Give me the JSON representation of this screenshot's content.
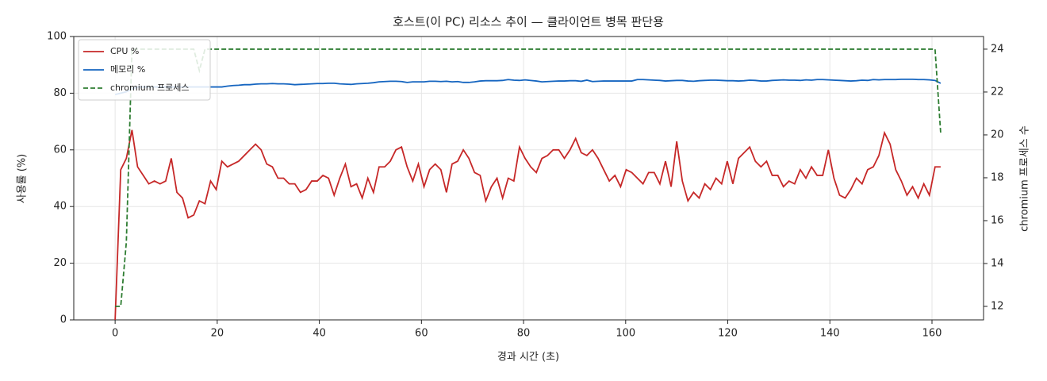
{
  "chart_data": {
    "type": "line",
    "title": "호스트(이 PC) 리소스 추이 — 클라이언트 병목 판단용",
    "x_label": "경과 시간 (초)",
    "y_label": "사용률 (%)",
    "y2_label": "chromium 프로세스 수",
    "xlim": [
      -8.1,
      170.1
    ],
    "xticks": [
      0,
      20,
      40,
      60,
      80,
      100,
      120,
      140,
      160
    ],
    "ylim": [
      0,
      100
    ],
    "yticks": [
      0,
      20,
      40,
      60,
      80,
      100
    ],
    "y2lim": [
      11.37,
      24.59
    ],
    "y2ticks": [
      12,
      14,
      16,
      18,
      20,
      22,
      24
    ],
    "grid": true,
    "legend": "upper-left",
    "x": [
      0,
      1.1,
      2.2,
      3.3,
      4.4,
      5.5,
      6.6,
      7.7,
      8.8,
      9.9,
      11,
      12.1,
      13.2,
      14.3,
      15.4,
      16.5,
      17.6,
      18.7,
      19.8,
      20.9,
      22,
      23.1,
      24.2,
      25.3,
      26.4,
      27.5,
      28.6,
      29.7,
      30.8,
      31.9,
      33,
      34.1,
      35.2,
      36.3,
      37.4,
      38.5,
      39.6,
      40.7,
      41.8,
      42.9,
      44,
      45.1,
      46.2,
      47.3,
      48.4,
      49.5,
      50.6,
      51.7,
      52.8,
      53.9,
      55,
      56.1,
      57.2,
      58.3,
      59.4,
      60.5,
      61.6,
      62.7,
      63.8,
      64.9,
      66,
      67.1,
      68.2,
      69.3,
      70.4,
      71.5,
      72.6,
      73.7,
      74.8,
      75.9,
      77,
      78.1,
      79.2,
      80.3,
      81.4,
      82.5,
      83.6,
      84.7,
      85.8,
      86.9,
      88,
      89.1,
      90.2,
      91.3,
      92.4,
      93.5,
      94.6,
      95.7,
      96.8,
      97.9,
      99,
      100.1,
      101.2,
      102.3,
      103.4,
      104.5,
      105.6,
      106.7,
      107.8,
      108.9,
      110,
      111.1,
      112.2,
      113.3,
      114.4,
      115.5,
      116.6,
      117.7,
      118.8,
      119.9,
      121,
      122.1,
      123.2,
      124.3,
      125.4,
      126.5,
      127.6,
      128.7,
      129.8,
      130.9,
      132,
      133.1,
      134.2,
      135.3,
      136.4,
      137.5,
      138.6,
      139.7,
      140.8,
      141.9,
      143,
      144.1,
      145.2,
      146.3,
      147.4,
      148.5,
      149.6,
      150.7,
      151.8,
      152.9,
      154,
      155.1,
      156.2,
      157.3,
      158.4,
      159.5,
      160.6,
      161.7
    ],
    "series": [
      {
        "name": "CPU %",
        "color": "#c62828",
        "style": "solid",
        "axis": "y",
        "values": [
          0,
          53,
          57,
          67,
          54,
          51,
          48,
          49,
          48,
          49,
          57,
          45,
          43,
          36,
          37,
          42,
          41,
          49,
          46,
          56,
          54,
          55,
          56,
          58,
          60,
          62,
          60,
          55,
          54,
          50,
          50,
          48,
          48,
          45,
          46,
          49,
          49,
          51,
          50,
          44,
          50,
          55,
          47,
          48,
          43,
          50,
          45,
          54,
          54,
          56,
          60,
          61,
          54,
          49,
          55,
          47,
          53,
          55,
          53,
          45,
          55,
          56,
          60,
          57,
          52,
          51,
          42,
          47,
          50,
          43,
          50,
          49,
          61,
          57,
          54,
          52,
          57,
          58,
          60,
          60,
          57,
          60,
          64,
          59,
          58,
          60,
          57,
          53,
          49,
          51,
          47,
          53,
          52,
          50,
          48,
          52,
          52,
          48,
          56,
          47,
          63,
          49,
          42,
          45,
          43,
          48,
          46,
          50,
          48,
          56,
          48,
          57,
          59,
          61,
          56,
          54,
          56,
          51,
          51,
          47,
          49,
          48,
          53,
          50,
          54,
          51,
          51,
          60,
          50,
          44,
          43,
          46,
          50,
          48,
          53,
          54,
          58,
          66,
          62,
          53,
          49,
          44,
          47,
          43,
          48,
          44,
          54,
          54
        ]
      },
      {
        "name": "메모리 %",
        "color": "#1565c0",
        "style": "solid",
        "axis": "y",
        "values": [
          79.5,
          80,
          80.5,
          81.5,
          82.2,
          82.2,
          82.2,
          82.2,
          82.2,
          82.2,
          82.2,
          82.2,
          82.2,
          82.2,
          82.2,
          82.2,
          82.2,
          82.2,
          82.2,
          82.2,
          82.5,
          82.7,
          82.8,
          83,
          83,
          83.2,
          83.3,
          83.3,
          83.4,
          83.3,
          83.3,
          83.2,
          83.0,
          83.1,
          83.2,
          83.3,
          83.4,
          83.4,
          83.5,
          83.5,
          83.3,
          83.2,
          83.1,
          83.3,
          83.4,
          83.5,
          83.7,
          84,
          84.1,
          84.2,
          84.2,
          84.1,
          83.8,
          84,
          84,
          84,
          84.2,
          84.2,
          84.1,
          84.2,
          84,
          84.1,
          83.8,
          83.8,
          84,
          84.3,
          84.4,
          84.4,
          84.4,
          84.5,
          84.8,
          84.6,
          84.5,
          84.7,
          84.5,
          84.3,
          84,
          84.1,
          84.2,
          84.3,
          84.3,
          84.4,
          84.4,
          84.2,
          84.6,
          84.1,
          84.2,
          84.3,
          84.3,
          84.3,
          84.3,
          84.3,
          84.3,
          84.8,
          84.8,
          84.7,
          84.6,
          84.5,
          84.3,
          84.4,
          84.5,
          84.5,
          84.3,
          84.2,
          84.4,
          84.5,
          84.6,
          84.6,
          84.5,
          84.4,
          84.4,
          84.3,
          84.4,
          84.6,
          84.5,
          84.3,
          84.3,
          84.5,
          84.6,
          84.7,
          84.6,
          84.6,
          84.5,
          84.7,
          84.6,
          84.8,
          84.8,
          84.7,
          84.6,
          84.5,
          84.4,
          84.3,
          84.4,
          84.6,
          84.5,
          84.8,
          84.7,
          84.8,
          84.8,
          84.8,
          84.9,
          84.9,
          84.9,
          84.8,
          84.8,
          84.7,
          84.5,
          83.5
        ]
      },
      {
        "name": "chromium 프로세스",
        "color": "#2e7d32",
        "style": "dashed",
        "axis": "y2",
        "values": [
          12,
          12,
          15,
          24,
          24,
          24,
          24,
          24,
          24,
          24,
          24,
          24,
          24,
          24,
          24,
          23,
          24,
          24,
          24,
          24,
          24,
          24,
          24,
          24,
          24,
          24,
          24,
          24,
          24,
          24,
          24,
          24,
          24,
          24,
          24,
          24,
          24,
          24,
          24,
          24,
          24,
          24,
          24,
          24,
          24,
          24,
          24,
          24,
          24,
          24,
          24,
          24,
          24,
          24,
          24,
          24,
          24,
          24,
          24,
          24,
          24,
          24,
          24,
          24,
          24,
          24,
          24,
          24,
          24,
          24,
          24,
          24,
          24,
          24,
          24,
          24,
          24,
          24,
          24,
          24,
          24,
          24,
          24,
          24,
          24,
          24,
          24,
          24,
          24,
          24,
          24,
          24,
          24,
          24,
          24,
          24,
          24,
          24,
          24,
          24,
          24,
          24,
          24,
          24,
          24,
          24,
          24,
          24,
          24,
          24,
          24,
          24,
          24,
          24,
          24,
          24,
          24,
          24,
          24,
          24,
          24,
          24,
          24,
          24,
          24,
          24,
          24,
          24,
          24,
          24,
          24,
          24,
          24,
          24,
          24,
          24,
          24,
          24,
          24,
          24,
          24,
          24,
          24,
          24,
          24,
          24,
          24,
          20.1
        ]
      }
    ]
  }
}
